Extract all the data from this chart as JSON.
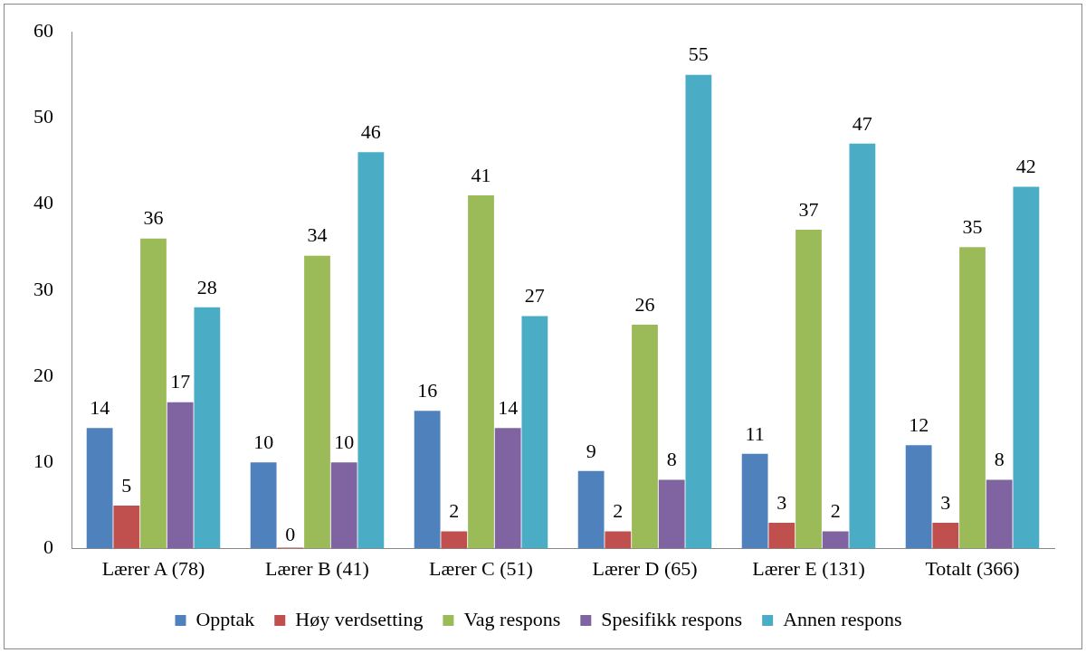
{
  "chart_data": {
    "type": "bar",
    "categories": [
      "Lærer A (78)",
      "Lærer B (41)",
      "Lærer C (51)",
      "Lærer D (65)",
      "Lærer E (131)",
      "Totalt (366)"
    ],
    "series": [
      {
        "name": "Opptak",
        "color": "#4f81bd",
        "values": [
          14,
          10,
          16,
          9,
          11,
          12
        ]
      },
      {
        "name": "Høy verdsetting",
        "color": "#c0504d",
        "values": [
          5,
          0,
          2,
          2,
          3,
          3
        ]
      },
      {
        "name": "Vag respons",
        "color": "#9bbb59",
        "values": [
          36,
          34,
          41,
          26,
          37,
          35
        ]
      },
      {
        "name": "Spesifikk respons",
        "color": "#8064a2",
        "values": [
          17,
          10,
          14,
          8,
          2,
          8
        ]
      },
      {
        "name": "Annen respons",
        "color": "#4bacc6",
        "values": [
          28,
          46,
          27,
          55,
          47,
          42
        ]
      }
    ],
    "ylim": [
      0,
      60
    ],
    "yticks": [
      0,
      10,
      20,
      30,
      40,
      50,
      60
    ],
    "grid": false,
    "legend": "bottom",
    "data_labels": true
  }
}
